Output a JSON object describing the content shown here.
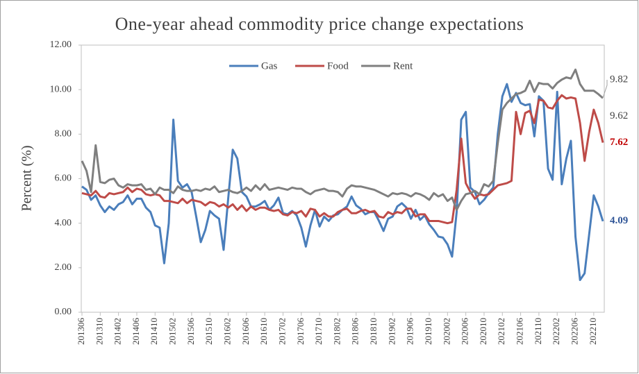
{
  "chart_data": {
    "type": "line",
    "title": "One-year ahead commodity price change expectations",
    "y_label": "Percent (%)",
    "categories": [
      "201306",
      null,
      null,
      null,
      "201310",
      null,
      null,
      null,
      "201402",
      null,
      null,
      null,
      "201406",
      null,
      null,
      null,
      "201410",
      null,
      null,
      null,
      "201502",
      null,
      null,
      null,
      "201506",
      null,
      null,
      null,
      "201510",
      null,
      null,
      null,
      "201602",
      null,
      null,
      null,
      "201606",
      null,
      null,
      null,
      "201610",
      null,
      null,
      null,
      "201702",
      null,
      null,
      null,
      "201706",
      null,
      null,
      null,
      "201710",
      null,
      null,
      null,
      "201802",
      null,
      null,
      null,
      "201806",
      null,
      null,
      null,
      "201810",
      null,
      null,
      null,
      "201902",
      null,
      null,
      null,
      "201906",
      null,
      null,
      null,
      "201910",
      null,
      null,
      null,
      "202002",
      null,
      null,
      null,
      "202006",
      null,
      null,
      null,
      "202010",
      null,
      null,
      null,
      "202102",
      null,
      null,
      null,
      "202106",
      null,
      null,
      null,
      "202110",
      null,
      null,
      null,
      "202202",
      null,
      null,
      null,
      "202206",
      null,
      null,
      null,
      "202210",
      null,
      null
    ],
    "series": [
      {
        "name": "Gas",
        "color": "#4a7ebb",
        "values": [
          5.65,
          5.5,
          5.05,
          5.25,
          4.8,
          4.5,
          4.75,
          4.6,
          4.85,
          4.95,
          5.25,
          4.85,
          5.1,
          5.1,
          4.7,
          4.5,
          3.9,
          3.8,
          2.2,
          4.0,
          8.65,
          5.9,
          5.6,
          5.75,
          5.4,
          4.3,
          3.15,
          3.7,
          4.55,
          4.35,
          4.2,
          2.8,
          5.1,
          7.3,
          6.9,
          5.4,
          5.2,
          4.75,
          4.75,
          4.85,
          5.0,
          4.6,
          4.8,
          5.15,
          4.45,
          4.4,
          4.55,
          4.35,
          3.8,
          2.95,
          3.9,
          4.6,
          3.85,
          4.3,
          4.1,
          4.35,
          4.4,
          4.6,
          4.75,
          5.2,
          4.8,
          4.65,
          4.4,
          4.5,
          4.5,
          4.1,
          3.65,
          4.2,
          4.3,
          4.75,
          4.9,
          4.7,
          4.2,
          4.6,
          4.15,
          4.35,
          3.95,
          3.7,
          3.4,
          3.35,
          3.05,
          2.5,
          4.5,
          8.65,
          9.0,
          5.6,
          5.4,
          4.85,
          5.05,
          5.35,
          5.6,
          8.0,
          9.7,
          10.25,
          9.45,
          9.85,
          9.4,
          9.3,
          9.35,
          7.9,
          9.7,
          9.5,
          6.45,
          5.95,
          9.9,
          5.75,
          6.9,
          7.7,
          3.4,
          1.45,
          1.75,
          3.5,
          5.25,
          4.75,
          4.09
        ]
      },
      {
        "name": "Food",
        "color": "#be4b48",
        "values": [
          5.35,
          5.3,
          5.25,
          5.45,
          5.2,
          5.15,
          5.35,
          5.3,
          5.35,
          5.4,
          5.6,
          5.4,
          5.55,
          5.5,
          5.3,
          5.25,
          5.3,
          5.25,
          5.0,
          5.0,
          4.95,
          4.9,
          5.1,
          4.9,
          5.05,
          5.0,
          4.95,
          4.8,
          4.95,
          4.9,
          4.75,
          4.85,
          4.7,
          4.85,
          4.6,
          4.8,
          4.55,
          4.75,
          4.6,
          4.7,
          4.7,
          4.6,
          4.55,
          4.6,
          4.4,
          4.35,
          4.5,
          4.45,
          4.55,
          4.3,
          4.65,
          4.6,
          4.3,
          4.45,
          4.3,
          4.3,
          4.5,
          4.6,
          4.65,
          4.45,
          4.45,
          4.55,
          4.6,
          4.5,
          4.55,
          4.3,
          4.25,
          4.5,
          4.4,
          4.5,
          4.45,
          4.65,
          4.65,
          4.3,
          4.4,
          4.4,
          4.1,
          4.1,
          4.1,
          4.05,
          4.0,
          4.05,
          5.5,
          7.8,
          5.8,
          5.4,
          5.1,
          5.3,
          5.25,
          5.3,
          5.5,
          5.7,
          5.75,
          5.8,
          5.9,
          9.0,
          8.0,
          8.95,
          9.05,
          8.5,
          9.55,
          9.5,
          9.2,
          9.15,
          9.5,
          9.75,
          9.6,
          9.65,
          9.6,
          8.5,
          6.8,
          8.1,
          9.1,
          8.5,
          7.62
        ]
      },
      {
        "name": "Rent",
        "color": "#7f7f7f",
        "values": [
          6.8,
          6.35,
          5.4,
          7.5,
          5.85,
          5.8,
          5.95,
          6.0,
          5.7,
          5.6,
          5.75,
          5.7,
          5.7,
          5.75,
          5.5,
          5.55,
          5.3,
          5.6,
          5.5,
          5.5,
          5.35,
          5.65,
          5.5,
          5.45,
          5.45,
          5.5,
          5.45,
          5.55,
          5.5,
          5.65,
          5.4,
          5.45,
          5.5,
          5.4,
          5.35,
          5.45,
          5.6,
          5.45,
          5.7,
          5.5,
          5.75,
          5.5,
          5.55,
          5.6,
          5.55,
          5.5,
          5.6,
          5.55,
          5.55,
          5.4,
          5.3,
          5.45,
          5.5,
          5.55,
          5.45,
          5.45,
          5.4,
          5.2,
          5.55,
          5.7,
          5.65,
          5.65,
          5.6,
          5.55,
          5.5,
          5.4,
          5.3,
          5.2,
          5.35,
          5.3,
          5.35,
          5.3,
          5.2,
          5.35,
          5.3,
          5.2,
          5.05,
          5.35,
          5.2,
          5.3,
          5.0,
          5.15,
          4.6,
          5.0,
          5.3,
          5.35,
          5.45,
          5.3,
          5.75,
          5.65,
          5.9,
          7.6,
          9.1,
          9.4,
          9.6,
          9.8,
          9.85,
          9.95,
          10.4,
          9.9,
          10.3,
          10.25,
          10.25,
          10.05,
          10.3,
          10.45,
          10.55,
          10.5,
          10.9,
          10.25,
          9.95,
          9.95,
          9.95,
          9.8,
          9.62
        ]
      }
    ],
    "ylim": [
      0,
      12
    ],
    "yticks": [
      {
        "value": 0,
        "label": "0.00"
      },
      {
        "value": 2,
        "label": "2.00"
      },
      {
        "value": 4,
        "label": "4.00"
      },
      {
        "value": 6,
        "label": "6.00"
      },
      {
        "value": 8,
        "label": "8.00"
      },
      {
        "value": 10,
        "label": "10.00"
      },
      {
        "value": 12,
        "label": "12.00"
      }
    ],
    "grid": false,
    "legend": "top",
    "annotations": [
      {
        "label": "9.82",
        "value": 9.82,
        "color": "#404040"
      },
      {
        "label": "9.62",
        "value": 9.62,
        "color": "#404040"
      },
      {
        "label": "7.62",
        "value": 7.62,
        "color": "#c00000"
      },
      {
        "label": "4.09",
        "value": 4.09,
        "color": "#2f5597"
      }
    ]
  }
}
